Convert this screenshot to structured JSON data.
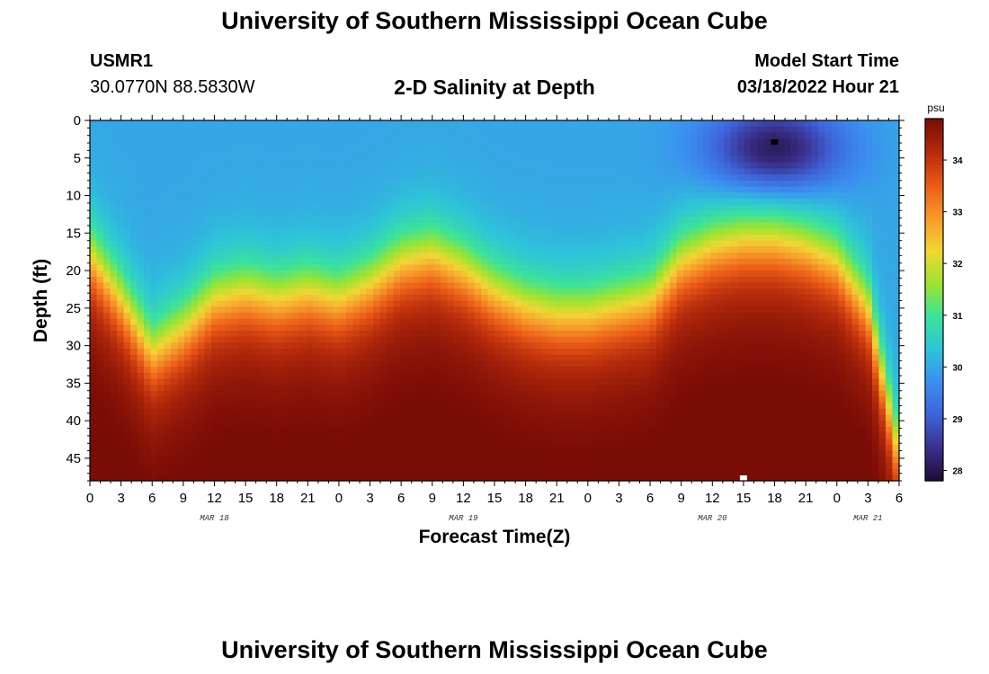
{
  "header": {
    "title": "University of Southern Mississippi Ocean Cube",
    "station_id": "USMR1",
    "station_coords": "30.0770N  88.5830W",
    "subtitle": "2-D Salinity at Depth",
    "start_label": "Model Start Time",
    "start_value": "03/18/2022 Hour 21"
  },
  "footer": {
    "title": "University of Southern Mississippi Ocean Cube"
  },
  "chart_data": {
    "type": "heatmap",
    "title": "2-D Salinity at Depth",
    "xlabel": "Forecast Time(Z)",
    "ylabel": "Depth (ft)",
    "x_tick_labels": [
      "0",
      "3",
      "6",
      "9",
      "12",
      "15",
      "18",
      "21",
      "0",
      "3",
      "6",
      "9",
      "12",
      "15",
      "18",
      "21",
      "0",
      "3",
      "6",
      "9",
      "12",
      "15",
      "18",
      "21",
      "0",
      "3",
      "6"
    ],
    "x_date_labels": [
      {
        "text": "MAR 18",
        "hour": 12
      },
      {
        "text": "MAR 19",
        "hour": 36
      },
      {
        "text": "MAR 20",
        "hour": 60
      },
      {
        "text": "MAR 21",
        "hour": 75
      }
    ],
    "x_range_hours": [
      0,
      78
    ],
    "y_ticks": [
      0,
      5,
      10,
      15,
      20,
      25,
      30,
      35,
      40,
      45
    ],
    "y_range_ft": [
      0,
      48
    ],
    "y_inverted": true,
    "colorbar": {
      "unit": "psu",
      "ticks": [
        28,
        29,
        30,
        31,
        32,
        33,
        34
      ],
      "range": [
        27.8,
        34.8
      ],
      "colors": [
        "#1c0c30",
        "#3a2f8a",
        "#3d63d8",
        "#3b8ef0",
        "#2ec4d8",
        "#3be39a",
        "#9be430",
        "#f2d634",
        "#f79a2a",
        "#ea5a17",
        "#b52a0b",
        "#7a0c06"
      ]
    },
    "interface_depth_ft": [
      {
        "hour": 0,
        "depth": 18
      },
      {
        "hour": 3,
        "depth": 24
      },
      {
        "hour": 6,
        "depth": 31
      },
      {
        "hour": 9,
        "depth": 28
      },
      {
        "hour": 12,
        "depth": 24
      },
      {
        "hour": 15,
        "depth": 23
      },
      {
        "hour": 18,
        "depth": 24
      },
      {
        "hour": 21,
        "depth": 23
      },
      {
        "hour": 24,
        "depth": 24
      },
      {
        "hour": 27,
        "depth": 22
      },
      {
        "hour": 30,
        "depth": 19
      },
      {
        "hour": 33,
        "depth": 18
      },
      {
        "hour": 36,
        "depth": 20
      },
      {
        "hour": 39,
        "depth": 23
      },
      {
        "hour": 42,
        "depth": 25
      },
      {
        "hour": 45,
        "depth": 26
      },
      {
        "hour": 48,
        "depth": 26
      },
      {
        "hour": 51,
        "depth": 25
      },
      {
        "hour": 54,
        "depth": 24
      },
      {
        "hour": 57,
        "depth": 19
      },
      {
        "hour": 60,
        "depth": 17
      },
      {
        "hour": 63,
        "depth": 16
      },
      {
        "hour": 66,
        "depth": 16
      },
      {
        "hour": 69,
        "depth": 17
      },
      {
        "hour": 72,
        "depth": 19
      },
      {
        "hour": 75,
        "depth": 25
      },
      {
        "hour": 78,
        "depth": 45
      }
    ],
    "surface_salinity_psu": 30.0,
    "bottom_salinity_psu": 34.6,
    "low_salinity_patch": {
      "hour_center": 66,
      "depth_center": 4,
      "min_psu": 28.0
    },
    "markers": [
      {
        "hour": 66,
        "depth": 3,
        "color": "#000000"
      },
      {
        "hour": 63,
        "depth": 48,
        "color": "#ffffff"
      }
    ]
  }
}
